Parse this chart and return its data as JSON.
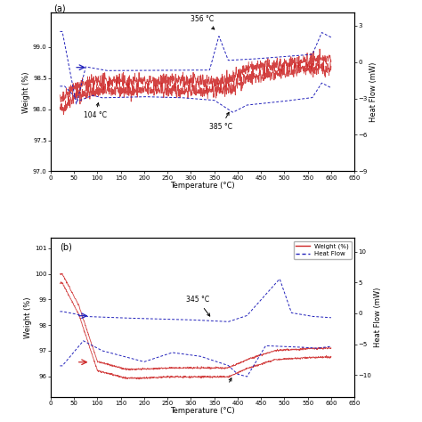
{
  "panel_a": {
    "weight_ylim": [
      97.0,
      99.55
    ],
    "weight_yticks": [
      97.0,
      97.5,
      98.0,
      98.5,
      99.0
    ],
    "heatflow_ylim": [
      -9,
      4.05
    ],
    "heatflow_yticks": [
      -9,
      -6,
      -3,
      0,
      3
    ],
    "xlim": [
      0,
      650
    ],
    "xticks": [
      0,
      50,
      100,
      150,
      200,
      250,
      300,
      350,
      400,
      450,
      500,
      550,
      600,
      650
    ],
    "xlabel": "Temperature (°C)",
    "ylabel_left": "Weight (%)",
    "ylabel_right": "Heat Flow (mW)",
    "weight_color": "#cc2222",
    "heatflow_color": "#2222bb",
    "panel_label": "(a)"
  },
  "panel_b": {
    "weight_ylim": [
      95.2,
      101.4
    ],
    "weight_yticks": [
      96,
      97,
      98,
      99,
      100,
      101
    ],
    "heatflow_ylim": [
      -13.5,
      12.2
    ],
    "heatflow_yticks": [
      -10,
      -5,
      0,
      5,
      10
    ],
    "xlim": [
      0,
      650
    ],
    "xticks": [
      0,
      50,
      100,
      150,
      200,
      250,
      300,
      350,
      400,
      450,
      500,
      550,
      600,
      650
    ],
    "xlabel": "Temperature (°C)",
    "ylabel_left": "Weight (%)",
    "ylabel_right": "Heat Flow (mW)",
    "weight_color": "#cc2222",
    "heatflow_color": "#2222bb",
    "legend_labels": [
      "Weight (%)",
      "Heat Flow"
    ],
    "panel_label": "(b)"
  },
  "background_color": "#ffffff"
}
